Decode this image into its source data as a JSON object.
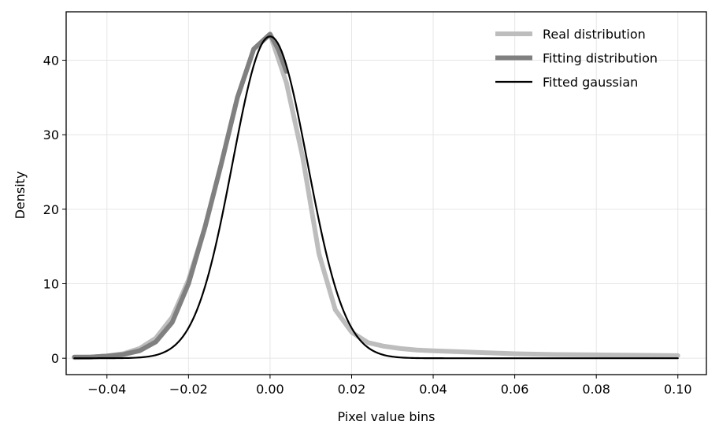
{
  "chart_data": {
    "type": "line",
    "title": "",
    "xlabel": "Pixel value bins",
    "ylabel": "Density",
    "xlim": [
      -0.05,
      0.107
    ],
    "ylim": [
      -2.2,
      46.5
    ],
    "xticks": [
      -0.04,
      -0.02,
      0.0,
      0.02,
      0.04,
      0.06,
      0.08,
      0.1
    ],
    "xtick_labels": [
      "−0.04",
      "−0.02",
      "0.00",
      "0.02",
      "0.04",
      "0.06",
      "0.08",
      "0.10"
    ],
    "yticks": [
      0,
      10,
      20,
      30,
      40
    ],
    "ytick_labels": [
      "0",
      "10",
      "20",
      "30",
      "40"
    ],
    "grid": true,
    "legend_position": "top-right",
    "series": [
      {
        "name": "Real distribution",
        "color": "#bdbdbd",
        "x": [
          -0.048,
          -0.044,
          -0.04,
          -0.036,
          -0.032,
          -0.028,
          -0.024,
          -0.02,
          -0.016,
          -0.012,
          -0.008,
          -0.004,
          0.0,
          0.004,
          0.008,
          0.012,
          0.016,
          0.02,
          0.024,
          0.028,
          0.032,
          0.036,
          0.04,
          0.05,
          0.06,
          0.07,
          0.08,
          0.09,
          0.1
        ],
        "y": [
          0.1,
          0.15,
          0.3,
          0.6,
          1.3,
          2.7,
          5.5,
          10.5,
          17.5,
          26,
          35,
          41.5,
          43.5,
          37,
          27,
          14,
          6.5,
          3.5,
          2.1,
          1.6,
          1.3,
          1.1,
          1.0,
          0.8,
          0.6,
          0.5,
          0.45,
          0.4,
          0.35
        ]
      },
      {
        "name": "Fitting distribution",
        "color": "#808080",
        "x": [
          -0.048,
          -0.044,
          -0.04,
          -0.036,
          -0.032,
          -0.028,
          -0.024,
          -0.02,
          -0.016,
          -0.012,
          -0.008,
          -0.004,
          0.0,
          0.002,
          0.004
        ],
        "y": [
          0.15,
          0.15,
          0.3,
          0.5,
          1.0,
          2.2,
          4.8,
          10.0,
          17.5,
          26,
          35,
          41.5,
          43.5,
          41.5,
          38.5
        ]
      },
      {
        "name": "Fitted gaussian",
        "color": "#000000",
        "mean": 0.0,
        "std": 0.0092,
        "peak": 43.2,
        "x_range": [
          -0.048,
          0.1
        ]
      }
    ]
  }
}
